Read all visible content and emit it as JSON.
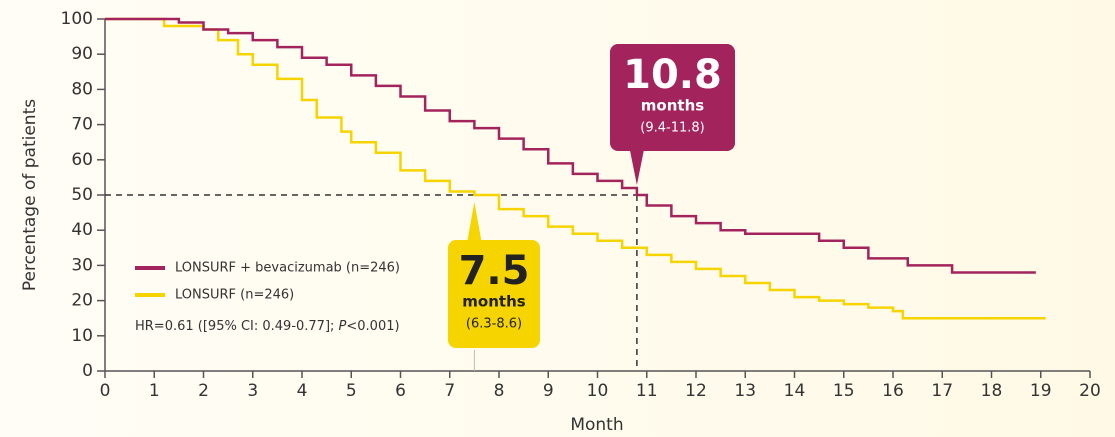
{
  "chart_data": {
    "type": "step",
    "step": "post",
    "x_label": "Month",
    "y_label": "Percentage of patients",
    "xlim": [
      0,
      20
    ],
    "ylim": [
      0,
      100
    ],
    "xticks": [
      0,
      1,
      2,
      3,
      4,
      5,
      6,
      7,
      8,
      9,
      10,
      11,
      12,
      13,
      14,
      15,
      16,
      17,
      18,
      19,
      20
    ],
    "yticks": [
      0,
      10,
      20,
      30,
      40,
      50,
      60,
      70,
      80,
      90,
      100
    ],
    "series": [
      {
        "name": "LONSURF + bevacizumab (n=246)",
        "color": "#a3245c",
        "x": [
          0,
          1,
          1.5,
          2,
          2.5,
          3,
          3.5,
          4,
          4.5,
          5,
          5.5,
          6,
          6.5,
          7,
          7.5,
          8,
          8.5,
          9,
          9.5,
          10,
          10.5,
          10.8,
          11,
          11.5,
          12,
          12.5,
          13,
          14,
          14.5,
          15,
          15.5,
          16.3,
          17.2,
          18.9
        ],
        "values": [
          100,
          100,
          99,
          97,
          96,
          94,
          92,
          89,
          87,
          84,
          81,
          78,
          74,
          71,
          69,
          66,
          63,
          59,
          56,
          54,
          52,
          50,
          47,
          44,
          42,
          40,
          39,
          39,
          37,
          35,
          32,
          30,
          28,
          28
        ]
      },
      {
        "name": "LONSURF (n=246)",
        "color": "#f5d400",
        "x": [
          0,
          1,
          1.2,
          2,
          2.3,
          2.7,
          3,
          3.5,
          4,
          4.3,
          4.8,
          5,
          5.5,
          6,
          6.5,
          7,
          7.5,
          8,
          8.5,
          9,
          9.5,
          10,
          10.5,
          11,
          11.5,
          12,
          12.5,
          13,
          13.5,
          14,
          14.5,
          15,
          15.5,
          16,
          16.2,
          19.1
        ],
        "values": [
          100,
          100,
          98,
          97,
          94,
          90,
          87,
          83,
          77,
          72,
          68,
          65,
          62,
          57,
          54,
          51,
          50,
          46,
          44,
          41,
          39,
          37,
          35,
          33,
          31,
          29,
          27,
          25,
          23,
          21,
          20,
          19,
          18,
          17,
          15,
          15
        ]
      }
    ],
    "median_level": 50,
    "medians": [
      {
        "value": 10.8,
        "unit": "months",
        "ci": "(9.4-11.8)",
        "color": "#a3245c"
      },
      {
        "value": 7.5,
        "unit": "months",
        "ci": "(6.3-8.6)",
        "color": "#f5d400"
      }
    ],
    "hazard_ratio": [
      "HR=0.61 ([95% CI: 0.49-0.77]; ",
      "P",
      "<0.001)"
    ]
  }
}
